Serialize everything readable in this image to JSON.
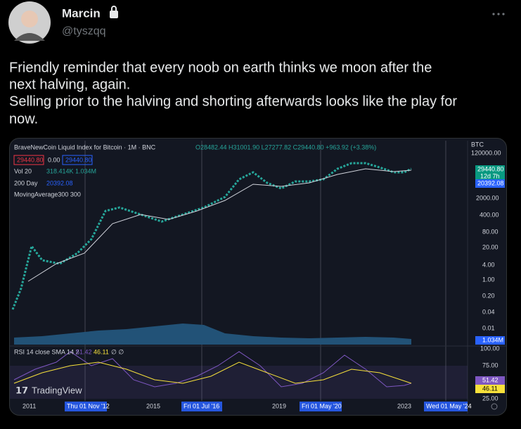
{
  "user": {
    "name": "Marcin",
    "handle": "@tyszqq"
  },
  "tweet": {
    "lines": [
      "Friendly reminder that every noob on earth thinks we moon after the",
      "next halving, again.",
      "Selling prior to the halving and shorting afterwards looks like the play for",
      "now."
    ]
  },
  "chart": {
    "title": "BraveNewCoin Liquid Index for Bitcoin · 1M · BNC",
    "ohlc": "O28482.44 H31001.90 L27277.82 C29440.80 +963.92 (+3.38%)",
    "badges": [
      "29440.80",
      "0.00",
      "29440.80"
    ],
    "vol": {
      "label": "Vol 20",
      "values": "318.414K  1.034M"
    },
    "ma200": {
      "label": "200 Day",
      "value": "20392.08"
    },
    "ma300": "MovingAverage300 300",
    "currency": "BTC",
    "price_axis": [
      "120000.00",
      "2000.00",
      "400.00",
      "80.00",
      "20.00",
      "4.00",
      "1.00",
      "0.20",
      "0.04",
      "0.01"
    ],
    "price_tags": {
      "last": "29440.80",
      "countdown": "12d 7h",
      "ma": "20392.08",
      "volume": "1.034M"
    },
    "rsi": {
      "label": "RSI 14 close SMA 14 2",
      "values": "51.42",
      "sma": "46.11",
      "extra": "∅ ∅",
      "axis": [
        "100.00",
        "75.00",
        "25.00"
      ],
      "tag_rsi": "51.42",
      "tag_sma": "46.11"
    },
    "time_axis": [
      "2011",
      "2015",
      "2019",
      "2023"
    ],
    "halvings": [
      "Thu 01 Nov '12",
      "Fri 01 Jul '16",
      "Fri 01 May '20",
      "Wed 01 May '24"
    ],
    "logo": "TradingView"
  }
}
